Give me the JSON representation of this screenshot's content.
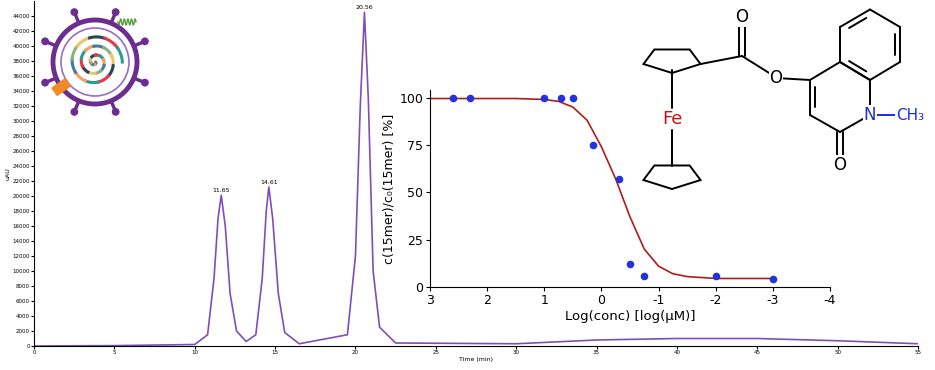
{
  "chart_data": [
    {
      "type": "line",
      "x_label": "Time (min)",
      "y_label": "uAU",
      "color": "#7e4fb8",
      "x": [
        0,
        5,
        10,
        10.8,
        11.2,
        11.45,
        11.65,
        11.9,
        12.2,
        12.6,
        13.2,
        13.8,
        14.2,
        14.45,
        14.61,
        14.85,
        15.2,
        15.6,
        16.5,
        19.5,
        20.0,
        20.3,
        20.56,
        20.8,
        21.1,
        21.5,
        22.5,
        30,
        35,
        40,
        45,
        50,
        55
      ],
      "values": [
        0,
        50,
        200,
        1500,
        9000,
        17000,
        20100,
        16000,
        7000,
        2000,
        600,
        1500,
        9000,
        18000,
        21200,
        17000,
        7000,
        1800,
        300,
        1500,
        12000,
        32000,
        44500,
        33000,
        10000,
        2500,
        400,
        300,
        800,
        1000,
        1000,
        700,
        300
      ],
      "annotations": [
        11.65,
        14.61,
        20.56
      ],
      "xlim": [
        0,
        55
      ],
      "xticks": [
        0,
        5,
        10,
        15,
        20,
        25,
        30,
        35,
        40,
        45,
        50,
        55
      ],
      "ylim": [
        0,
        46000
      ],
      "yticks": [
        0,
        2000,
        4000,
        6000,
        8000,
        10000,
        12000,
        14000,
        16000,
        18000,
        20000,
        22000,
        24000,
        26000,
        28000,
        30000,
        32000,
        34000,
        36000,
        38000,
        40000,
        42000,
        44000
      ]
    },
    {
      "type": "scatter",
      "x_label": "Log(conc) [log(µM)]",
      "y_label": "c(15mer)/c₀(15mer) [%]",
      "series": [
        {
          "type": "scatter",
          "color": "#2233dd",
          "marker": "circle",
          "x": [
            2.6,
            2.3,
            1.0,
            0.7,
            0.5,
            0.15,
            -0.3,
            -0.5,
            -0.75,
            -2,
            -3
          ],
          "values": [
            100,
            100,
            100,
            100,
            100,
            75,
            57,
            12,
            6,
            6,
            4
          ]
        },
        {
          "type": "line",
          "color": "#b01c1c",
          "line_style": "solid",
          "x": [
            3,
            2,
            1.5,
            1,
            0.75,
            0.5,
            0.25,
            0,
            -0.25,
            -0.5,
            -0.75,
            -1,
            -1.25,
            -1.5,
            -2,
            -3
          ],
          "values": [
            99.5,
            99.5,
            99.5,
            99,
            98,
            95,
            88,
            74,
            57,
            37,
            20,
            11,
            7,
            5.5,
            4.5,
            4.5
          ]
        }
      ],
      "xlim": [
        3,
        -4
      ],
      "xticks": [
        3,
        2,
        1,
        0,
        -1,
        -2,
        -3,
        -4
      ],
      "ylim": [
        0,
        104
      ],
      "yticks": [
        0,
        25,
        50,
        75,
        100
      ]
    }
  ],
  "structure": {
    "metal": "Fe",
    "carbonyl_oxygen": "O",
    "ester_oxygen": "O",
    "nitrogen": "N",
    "lactam_oxygen": "O",
    "methyl": "CH₃"
  }
}
